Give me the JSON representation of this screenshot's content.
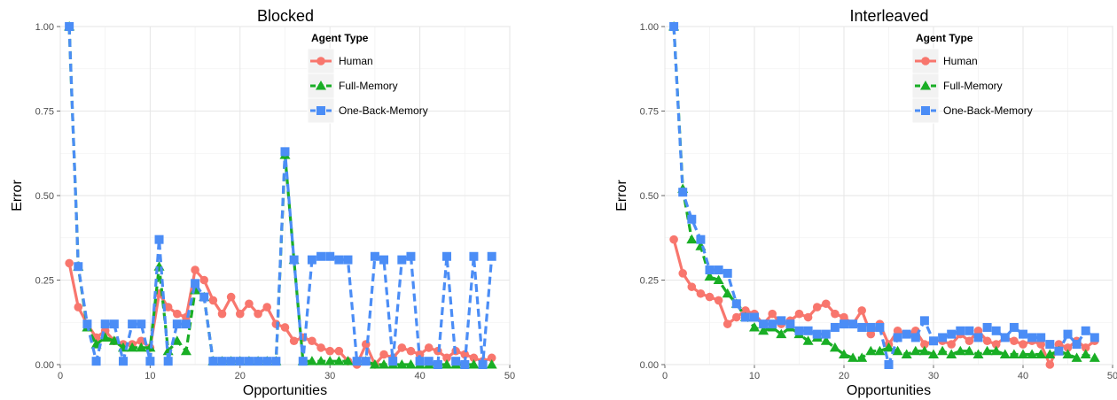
{
  "chart_data": [
    {
      "type": "line",
      "title": "Blocked",
      "xlabel": "Opportunities",
      "ylabel": "Error",
      "xlim": [
        0,
        50
      ],
      "ylim": [
        0,
        1
      ],
      "xticks": [
        "0",
        "10",
        "20",
        "30",
        "40",
        "50"
      ],
      "yticks": [
        "0.00",
        "0.25",
        "0.50",
        "0.75",
        "1.00"
      ],
      "grid": true,
      "legend_title": "Agent Type",
      "legend_position": "top-right",
      "x": [
        1,
        2,
        3,
        4,
        5,
        6,
        7,
        8,
        9,
        10,
        11,
        12,
        13,
        14,
        15,
        16,
        17,
        18,
        19,
        20,
        21,
        22,
        23,
        24,
        25,
        26,
        27,
        28,
        29,
        30,
        31,
        32,
        33,
        34,
        35,
        36,
        37,
        38,
        39,
        40,
        41,
        42,
        43,
        44,
        45,
        46,
        47,
        48
      ],
      "series": [
        {
          "name": "Human",
          "color": "#f8766d",
          "marker": "circle",
          "dash": "solid",
          "values": [
            0.3,
            0.17,
            0.12,
            0.08,
            0.1,
            0.07,
            0.06,
            0.06,
            0.07,
            0.05,
            0.21,
            0.17,
            0.15,
            0.14,
            0.28,
            0.25,
            0.19,
            0.15,
            0.2,
            0.15,
            0.18,
            0.15,
            0.17,
            0.12,
            0.11,
            0.07,
            0.08,
            0.07,
            0.05,
            0.04,
            0.04,
            0.01,
            0.0,
            0.06,
            0.0,
            0.03,
            0.02,
            0.05,
            0.04,
            0.03,
            0.05,
            0.04,
            0.02,
            0.04,
            0.03,
            0.02,
            0.01,
            0.02
          ]
        },
        {
          "name": "Full-Memory",
          "color": "#19ae25",
          "marker": "triangle",
          "dash": "dashed",
          "values": [
            1.0,
            0.29,
            0.11,
            0.06,
            0.08,
            0.07,
            0.05,
            0.05,
            0.05,
            0.05,
            0.29,
            0.04,
            0.07,
            0.04,
            0.22,
            0.2,
            0.01,
            0.01,
            0.01,
            0.01,
            0.01,
            0.01,
            0.01,
            0.01,
            0.62,
            0.31,
            0.01,
            0.01,
            0.01,
            0.01,
            0.01,
            0.01,
            0.01,
            0.01,
            0.0,
            0.0,
            0.0,
            0.0,
            0.0,
            0.0,
            0.0,
            0.0,
            0.0,
            0.0,
            0.0,
            0.0,
            0.0,
            0.0
          ]
        },
        {
          "name": "One-Back-Memory",
          "color": "#4b8df6",
          "marker": "square",
          "dash": "dashed",
          "values": [
            1.0,
            0.29,
            0.12,
            0.01,
            0.12,
            0.12,
            0.01,
            0.12,
            0.12,
            0.01,
            0.37,
            0.01,
            0.12,
            0.12,
            0.24,
            0.2,
            0.01,
            0.01,
            0.01,
            0.01,
            0.01,
            0.01,
            0.01,
            0.01,
            0.63,
            0.31,
            0.01,
            0.31,
            0.32,
            0.32,
            0.31,
            0.31,
            0.01,
            0.01,
            0.32,
            0.31,
            0.01,
            0.31,
            0.32,
            0.01,
            0.01,
            0.0,
            0.32,
            0.01,
            0.0,
            0.32,
            0.0,
            0.32
          ]
        }
      ]
    },
    {
      "type": "line",
      "title": "Interleaved",
      "xlabel": "Opportunities",
      "ylabel": "Error",
      "xlim": [
        0,
        50
      ],
      "ylim": [
        0,
        1
      ],
      "xticks": [
        "0",
        "10",
        "20",
        "30",
        "40",
        "50"
      ],
      "yticks": [
        "0.00",
        "0.25",
        "0.50",
        "0.75",
        "1.00"
      ],
      "grid": true,
      "legend_title": "Agent Type",
      "legend_position": "top-right",
      "x": [
        1,
        2,
        3,
        4,
        5,
        6,
        7,
        8,
        9,
        10,
        11,
        12,
        13,
        14,
        15,
        16,
        17,
        18,
        19,
        20,
        21,
        22,
        23,
        24,
        25,
        26,
        27,
        28,
        29,
        30,
        31,
        32,
        33,
        34,
        35,
        36,
        37,
        38,
        39,
        40,
        41,
        42,
        43,
        44,
        45,
        46,
        47,
        48
      ],
      "series": [
        {
          "name": "Human",
          "color": "#f8766d",
          "marker": "circle",
          "dash": "solid",
          "values": [
            0.37,
            0.27,
            0.23,
            0.21,
            0.2,
            0.19,
            0.12,
            0.14,
            0.16,
            0.15,
            0.12,
            0.15,
            0.12,
            0.13,
            0.15,
            0.14,
            0.17,
            0.18,
            0.15,
            0.14,
            0.12,
            0.16,
            0.09,
            0.12,
            0.06,
            0.1,
            0.09,
            0.1,
            0.06,
            0.07,
            0.07,
            0.06,
            0.09,
            0.07,
            0.1,
            0.07,
            0.06,
            0.08,
            0.07,
            0.06,
            0.07,
            0.06,
            0.0,
            0.06,
            0.05,
            0.07,
            0.05,
            0.07
          ]
        },
        {
          "name": "Full-Memory",
          "color": "#19ae25",
          "marker": "triangle",
          "dash": "dashed",
          "values": [
            1.0,
            0.52,
            0.37,
            0.35,
            0.26,
            0.25,
            0.21,
            0.18,
            0.14,
            0.11,
            0.1,
            0.11,
            0.09,
            0.11,
            0.09,
            0.07,
            0.08,
            0.07,
            0.05,
            0.03,
            0.02,
            0.02,
            0.04,
            0.04,
            0.05,
            0.04,
            0.03,
            0.04,
            0.04,
            0.03,
            0.04,
            0.03,
            0.04,
            0.04,
            0.03,
            0.04,
            0.04,
            0.03,
            0.03,
            0.03,
            0.03,
            0.03,
            0.03,
            0.04,
            0.03,
            0.02,
            0.03,
            0.02
          ]
        },
        {
          "name": "One-Back-Memory",
          "color": "#4b8df6",
          "marker": "square",
          "dash": "dashed",
          "values": [
            1.0,
            0.51,
            0.43,
            0.37,
            0.28,
            0.28,
            0.27,
            0.18,
            0.14,
            0.14,
            0.12,
            0.12,
            0.13,
            0.12,
            0.1,
            0.1,
            0.09,
            0.09,
            0.11,
            0.12,
            0.12,
            0.11,
            0.11,
            0.11,
            0.0,
            0.08,
            0.09,
            0.08,
            0.13,
            0.07,
            0.08,
            0.09,
            0.1,
            0.1,
            0.08,
            0.11,
            0.1,
            0.08,
            0.11,
            0.09,
            0.08,
            0.08,
            0.06,
            0.04,
            0.09,
            0.06,
            0.1,
            0.08
          ]
        }
      ]
    }
  ]
}
